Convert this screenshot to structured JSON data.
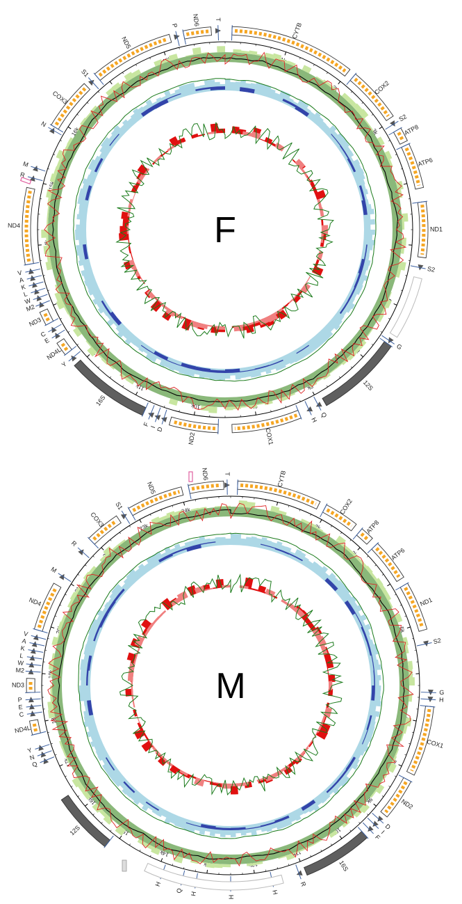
{
  "colors": {
    "gene_orange": "#f5a623",
    "rrna_grey": "#5f5f5f",
    "gc_green": "#8ab87a",
    "gc_light_green": "#c8e6a0",
    "skew_blue": "#add8e6",
    "skew_dark_blue": "#3344aa",
    "inner_red": "#e01010",
    "inner_pink": "#f08080",
    "line_green": "#1a7a1a",
    "line_red": "#dd2222",
    "control_pink": "#e060a0"
  },
  "genomes": [
    {
      "label": "F",
      "ticks": [
        "1k",
        "2k",
        "3k",
        "4k",
        "5k",
        "6k",
        "7k",
        "8k",
        "9k",
        "10k",
        "11k",
        "12k",
        "13k",
        "14k",
        "15k",
        "16k",
        "17k",
        "18k"
      ],
      "features": [
        {
          "name": "CYTB"
        },
        {
          "name": "COX2"
        },
        {
          "name": "S2"
        },
        {
          "name": "ATP8"
        },
        {
          "name": "ATP6"
        },
        {
          "name": "ND1"
        },
        {
          "name": "S2"
        },
        {
          "name": "G"
        },
        {
          "name": "12S"
        },
        {
          "name": "Q"
        },
        {
          "name": "H"
        },
        {
          "name": "COX1"
        },
        {
          "name": "ND2"
        },
        {
          "name": "D"
        },
        {
          "name": "I"
        },
        {
          "name": "F"
        },
        {
          "name": "16S"
        },
        {
          "name": "Y"
        },
        {
          "name": "ND4L"
        },
        {
          "name": "E"
        },
        {
          "name": "C"
        },
        {
          "name": "ND3"
        },
        {
          "name": "M2"
        },
        {
          "name": "W"
        },
        {
          "name": "L"
        },
        {
          "name": "K"
        },
        {
          "name": "A"
        },
        {
          "name": "V"
        },
        {
          "name": "ND4"
        },
        {
          "name": "R"
        },
        {
          "name": "M"
        },
        {
          "name": "N"
        },
        {
          "name": "COX3"
        },
        {
          "name": "S1"
        },
        {
          "name": "ND5"
        },
        {
          "name": "P"
        },
        {
          "name": "ND6"
        },
        {
          "name": "T"
        }
      ]
    },
    {
      "label": "M",
      "ticks": [
        "1k",
        "2k",
        "3k",
        "4k",
        "5k",
        "6k",
        "7k",
        "8k",
        "9k",
        "10k",
        "11k",
        "12k",
        "13k",
        "14k",
        "15k",
        "16k",
        "17k",
        "18k",
        "19k",
        "20k",
        "21k",
        "22k",
        "23k",
        "24k"
      ],
      "features": [
        {
          "name": "CYTB"
        },
        {
          "name": "COX2"
        },
        {
          "name": "ATP8"
        },
        {
          "name": "ATP6"
        },
        {
          "name": "ND1"
        },
        {
          "name": "S2"
        },
        {
          "name": "G"
        },
        {
          "name": "H"
        },
        {
          "name": "COX1"
        },
        {
          "name": "ND2"
        },
        {
          "name": "D"
        },
        {
          "name": "I"
        },
        {
          "name": "F"
        },
        {
          "name": "16S"
        },
        {
          "name": "R"
        },
        {
          "name": "H"
        },
        {
          "name": "H"
        },
        {
          "name": "H"
        },
        {
          "name": "Q"
        },
        {
          "name": "H"
        },
        {
          "name": "12S"
        },
        {
          "name": "Q"
        },
        {
          "name": "N"
        },
        {
          "name": "Y"
        },
        {
          "name": "ND4L"
        },
        {
          "name": "C"
        },
        {
          "name": "E"
        },
        {
          "name": "P"
        },
        {
          "name": "ND3"
        },
        {
          "name": "M2"
        },
        {
          "name": "W"
        },
        {
          "name": "L"
        },
        {
          "name": "K"
        },
        {
          "name": "A"
        },
        {
          "name": "V"
        },
        {
          "name": "ND4"
        },
        {
          "name": "M"
        },
        {
          "name": "R"
        },
        {
          "name": "COX3"
        },
        {
          "name": "S1"
        },
        {
          "name": "ND5"
        },
        {
          "name": "ND6"
        },
        {
          "name": "T"
        }
      ]
    }
  ]
}
